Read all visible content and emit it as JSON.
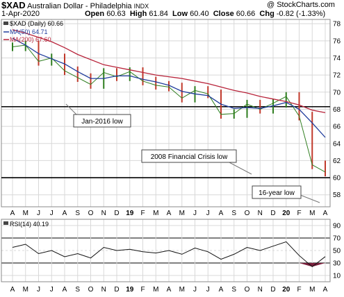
{
  "header": {
    "symbol": "$XAD",
    "name": "Australian Dollar - Philadelphia",
    "exchange": "INDX",
    "copyright": "@ StockCharts.com",
    "date": "1-Apr-2020",
    "open_label": "Open",
    "open": "60.63",
    "high_label": "High",
    "high": "61.84",
    "low_label": "Low",
    "low": "60.40",
    "close_label": "Close",
    "close": "60.66",
    "chg_label": "Chg",
    "chg": "-0.82 (-1.33%)"
  },
  "legend": {
    "price": "$XAD (Daily) 60.66",
    "ma50": "MA(50) 64.71",
    "ma200": "MA(200) 67.60"
  },
  "annotations": {
    "jan2016": "Jan-2016 low",
    "crisis2008": "2008 Financial Crisis low",
    "low16": "16-year low"
  },
  "rsi": {
    "label": "RSI(14) 40.19",
    "levels": [
      70,
      30
    ],
    "ticks": [
      "90",
      "70",
      "50",
      "30",
      "10"
    ]
  },
  "colors": {
    "price": "#2e7d1e",
    "ma50": "#1f3c9c",
    "ma200": "#b8233a",
    "grid": "#d8d8d8",
    "rsi_fill": "#7a1f3c"
  },
  "chart_data": {
    "type": "line",
    "title": "$XAD Australian Dollar - Philadelphia INDX",
    "x": [
      "2018-04",
      "2018-05",
      "2018-06",
      "2018-07",
      "2018-08",
      "2018-09",
      "2018-10",
      "2018-11",
      "2018-12",
      "2019-01",
      "2019-02",
      "2019-03",
      "2019-04",
      "2019-05",
      "2019-06",
      "2019-07",
      "2019-08",
      "2019-09",
      "2019-10",
      "2019-11",
      "2019-12",
      "2020-01",
      "2020-02",
      "2020-03",
      "2020-04"
    ],
    "x_tick_labels": [
      "A",
      "M",
      "J",
      "J",
      "A",
      "S",
      "O",
      "N",
      "D",
      "19",
      "F",
      "M",
      "A",
      "M",
      "J",
      "J",
      "A",
      "S",
      "O",
      "N",
      "D",
      "20",
      "F",
      "M",
      "A"
    ],
    "ylim": [
      56.6,
      78.5
    ],
    "y_ticks": [
      "78",
      "76",
      "74",
      "72",
      "70",
      "68",
      "66",
      "64",
      "62",
      "60",
      "58"
    ],
    "series": [
      {
        "name": "$XAD (Daily) 60.66",
        "values": [
          75.3,
          75.5,
          73.6,
          74.0,
          72.5,
          71.7,
          70.9,
          72.3,
          71.8,
          72.4,
          71.3,
          70.8,
          70.6,
          69.3,
          70.2,
          69.8,
          67.4,
          67.5,
          68.6,
          68.0,
          68.7,
          69.5,
          67.2,
          61.5,
          60.66
        ]
      },
      {
        "name": "MA(50) 64.71",
        "values": [
          76.3,
          75.5,
          74.5,
          73.9,
          73.3,
          72.4,
          71.6,
          71.6,
          71.9,
          71.9,
          71.5,
          71.2,
          70.8,
          70.1,
          69.8,
          69.6,
          68.6,
          68.1,
          68.2,
          68.1,
          68.4,
          68.8,
          68.0,
          66.4,
          64.71
        ]
      },
      {
        "name": "MA(200) 67.60",
        "values": [
          77.3,
          76.9,
          76.4,
          75.9,
          75.2,
          74.4,
          73.8,
          73.2,
          72.9,
          72.6,
          72.3,
          72.0,
          71.8,
          71.6,
          71.3,
          71.0,
          70.6,
          70.2,
          69.9,
          69.5,
          69.2,
          68.9,
          68.5,
          67.9,
          67.6
        ]
      }
    ],
    "horizontal_lines": [
      68.3,
      60.0
    ],
    "rsi_values": [
      55,
      60,
      45,
      50,
      40,
      45,
      38,
      55,
      50,
      52,
      48,
      46,
      50,
      44,
      54,
      48,
      36,
      44,
      55,
      50,
      57,
      64,
      42,
      24,
      40.19
    ]
  }
}
